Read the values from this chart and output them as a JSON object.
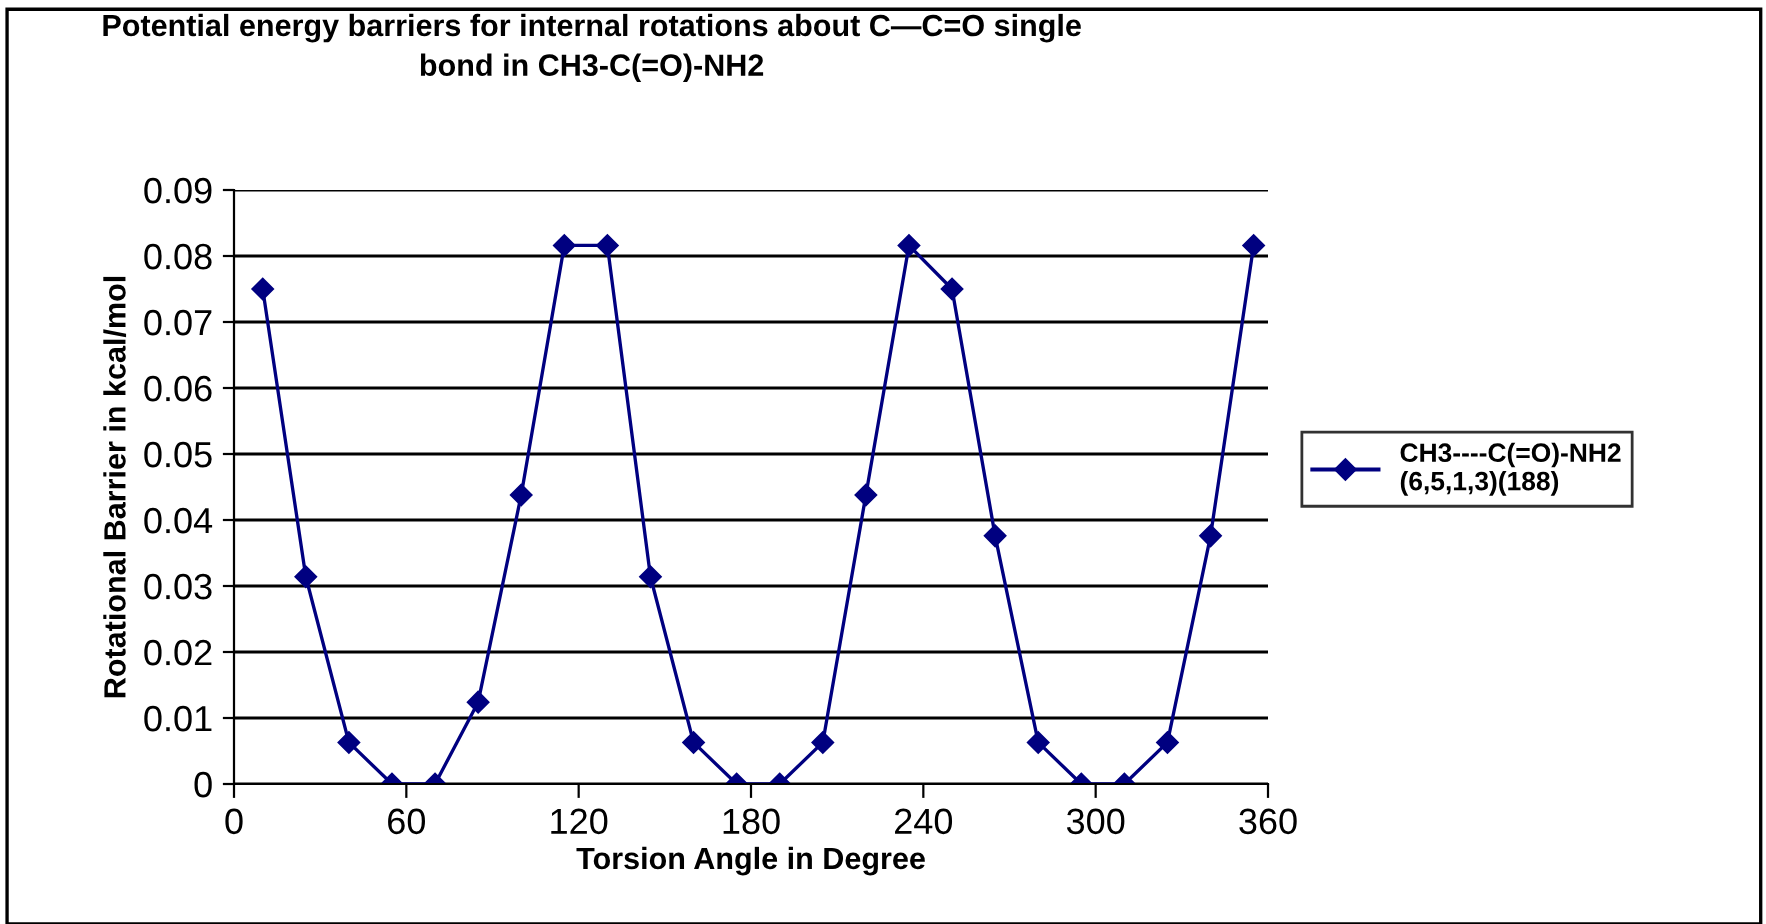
{
  "chart_data": {
    "type": "line",
    "title": "Potential energy barriers for internal rotations about C—C=O single\nbond in CH3-C(=O)-NH2",
    "xlabel": "Torsion Angle in Degree",
    "ylabel": "Rotational Barrier in kcal/mol",
    "x": [
      10,
      25,
      40,
      55,
      70,
      85,
      100,
      115,
      130,
      145,
      160,
      175,
      190,
      205,
      220,
      235,
      250,
      265,
      280,
      295,
      310,
      325,
      340,
      355
    ],
    "series": [
      {
        "name": "CH3----C(=O)-NH2\n(6,5,1,3)(188)",
        "color": "#000080",
        "values": [
          0.075,
          0.0314,
          0.0063,
          0,
          0,
          0.0124,
          0.0438,
          0.0816,
          0.0816,
          0.0314,
          0.0063,
          0,
          0,
          0.0063,
          0.0438,
          0.0816,
          0.075,
          0.0376,
          0.0063,
          0,
          0,
          0.0063,
          0.0376,
          0.0816
        ]
      }
    ],
    "xlim": [
      0,
      360
    ],
    "xticks": [
      0,
      60,
      120,
      180,
      240,
      300,
      360
    ],
    "ylim": [
      0,
      0.09
    ],
    "yticks": [
      0,
      0.01,
      0.02,
      0.03,
      0.04,
      0.05,
      0.06,
      0.07,
      0.08,
      0.09
    ],
    "grid": "y",
    "legend": "right",
    "marker": "diamond",
    "line_style": "solid"
  }
}
